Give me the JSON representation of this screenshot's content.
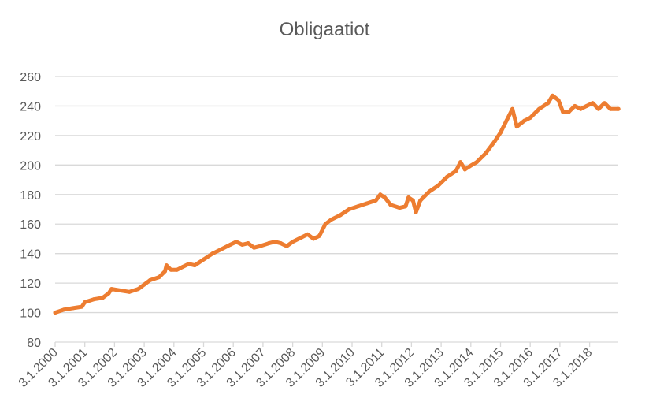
{
  "chart_data": {
    "type": "line",
    "title": "Obligaatiot",
    "xlabel": "",
    "ylabel": "",
    "ylim": [
      80,
      260
    ],
    "yticks": [
      80,
      100,
      120,
      140,
      160,
      180,
      200,
      220,
      240,
      260
    ],
    "xlim": [
      2000.0,
      2018.97
    ],
    "xtick_labels": [
      "3.1.2000",
      "3.1.2001",
      "3.1.2002",
      "3.1.2003",
      "3.1.2004",
      "3.1.2005",
      "3.1.2006",
      "3.1.2007",
      "3.1.2008",
      "3.1.2009",
      "3.1.2010",
      "3.1.2011",
      "3.1.2012",
      "3.1.2013",
      "3.1.2014",
      "3.1.2015",
      "3.1.2016",
      "3.1.2017",
      "3.1.2018"
    ],
    "grid": true,
    "legend": "none",
    "series": [
      {
        "name": "Obligaatiot",
        "color": "#ED7D31",
        "x": [
          2000.0,
          2000.3,
          2000.6,
          2000.9,
          2001.0,
          2001.3,
          2001.6,
          2001.8,
          2001.9,
          2002.2,
          2002.5,
          2002.8,
          2003.0,
          2003.2,
          2003.5,
          2003.7,
          2003.75,
          2003.9,
          2004.1,
          2004.3,
          2004.5,
          2004.7,
          2005.0,
          2005.3,
          2005.6,
          2005.9,
          2006.1,
          2006.3,
          2006.5,
          2006.7,
          2006.9,
          2007.2,
          2007.4,
          2007.6,
          2007.8,
          2008.0,
          2008.3,
          2008.5,
          2008.7,
          2008.9,
          2009.1,
          2009.3,
          2009.6,
          2009.9,
          2010.2,
          2010.5,
          2010.8,
          2010.95,
          2011.1,
          2011.3,
          2011.6,
          2011.8,
          2011.9,
          2012.05,
          2012.15,
          2012.3,
          2012.6,
          2012.9,
          2013.2,
          2013.5,
          2013.65,
          2013.8,
          2013.95,
          2014.2,
          2014.5,
          2014.8,
          2015.0,
          2015.2,
          2015.4,
          2015.55,
          2015.8,
          2016.0,
          2016.3,
          2016.6,
          2016.75,
          2016.95,
          2017.1,
          2017.3,
          2017.5,
          2017.7,
          2017.9,
          2018.1,
          2018.3,
          2018.5,
          2018.7,
          2018.97
        ],
        "values": [
          100,
          102,
          103,
          104,
          107,
          109,
          110,
          113,
          116,
          115,
          114,
          116,
          119,
          122,
          124,
          128,
          132,
          129,
          129,
          131,
          133,
          132,
          136,
          140,
          143,
          146,
          148,
          146,
          147,
          144,
          145,
          147,
          148,
          147,
          145,
          148,
          151,
          153,
          150,
          152,
          160,
          163,
          166,
          170,
          172,
          174,
          176,
          180,
          178,
          173,
          171,
          172,
          178,
          176,
          168,
          176,
          182,
          186,
          192,
          196,
          202,
          197,
          199,
          202,
          208,
          216,
          222,
          230,
          238,
          226,
          230,
          232,
          238,
          242,
          247,
          244,
          236,
          236,
          240,
          238,
          240,
          242,
          238,
          242,
          238,
          238
        ]
      }
    ]
  }
}
